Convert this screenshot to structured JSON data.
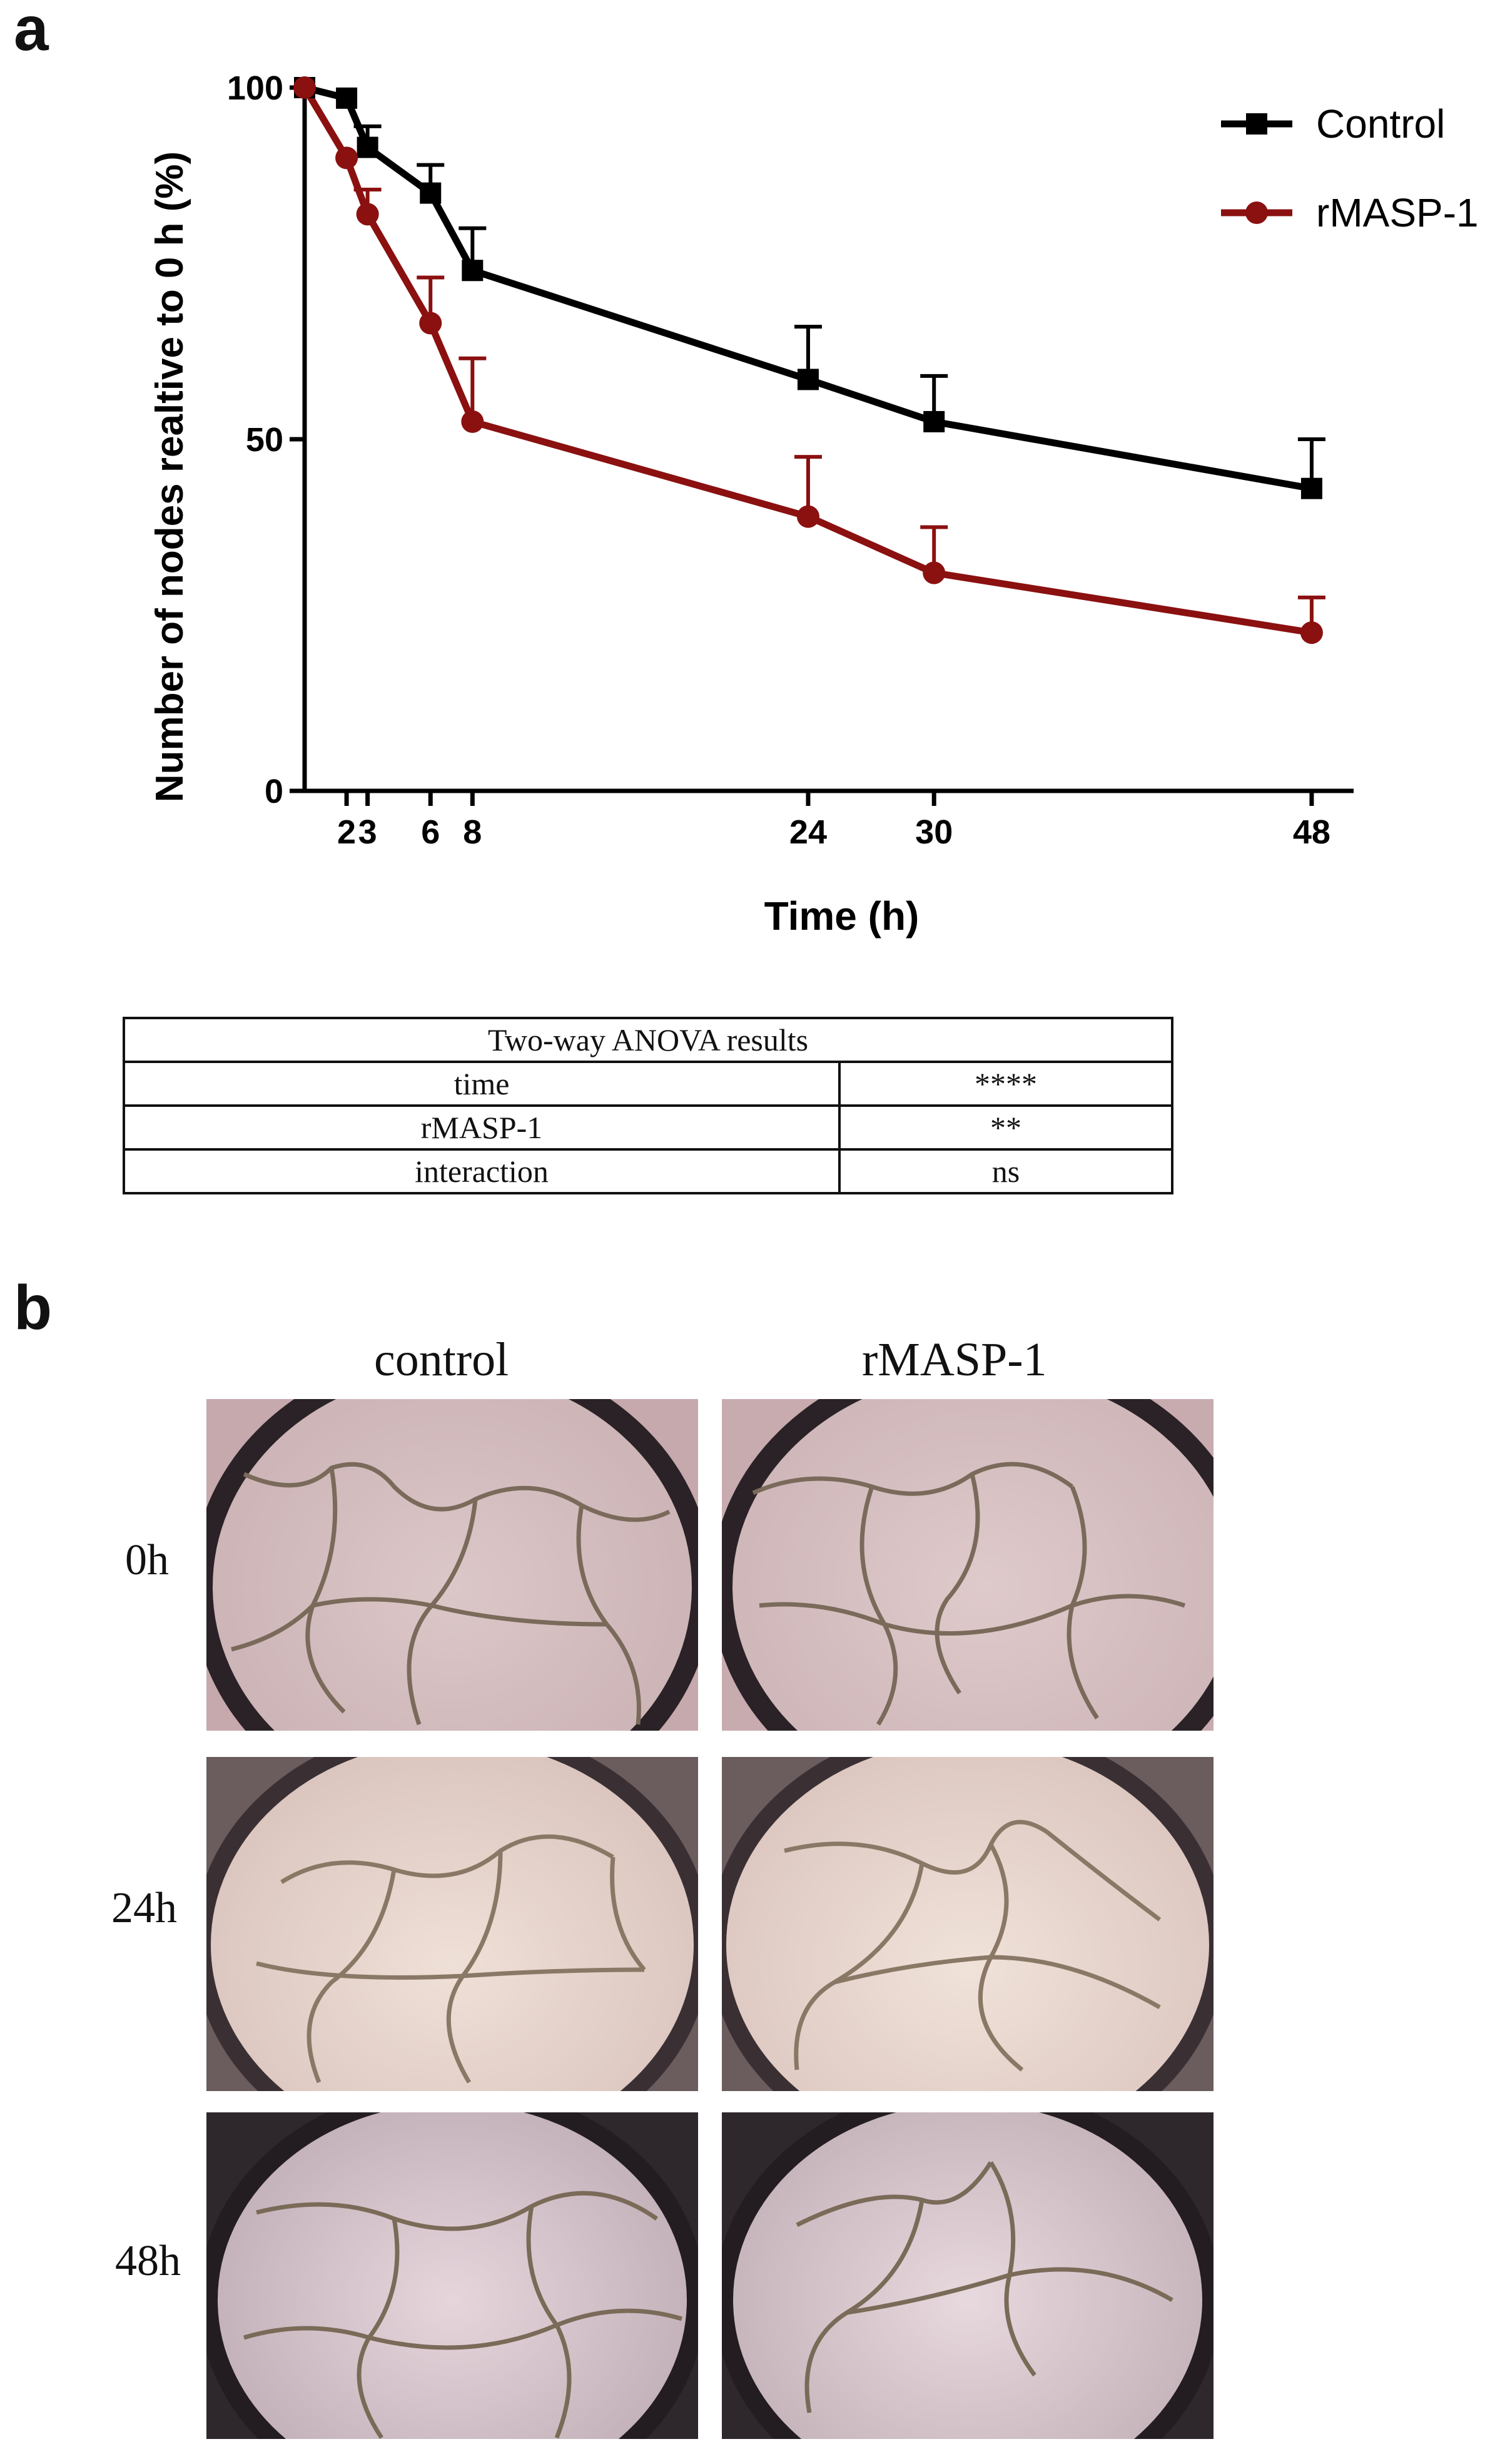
{
  "panel_a": {
    "label": "a"
  },
  "panel_b": {
    "label": "b"
  },
  "chart_data": {
    "type": "line",
    "xlabel": "Time (h)",
    "ylabel": "Number of nodes realtive to 0 h (%)",
    "x": [
      0,
      2,
      3,
      6,
      8,
      24,
      30,
      48
    ],
    "xticks": [
      2,
      3,
      6,
      8,
      24,
      30,
      48
    ],
    "yticks": [
      0,
      50,
      100
    ],
    "xlim": [
      0,
      50
    ],
    "ylim": [
      0,
      100
    ],
    "legend_position": "top-right",
    "series": [
      {
        "name": "Control",
        "color": "#000000",
        "marker": "square",
        "values": [
          100,
          98.5,
          91.5,
          85,
          74,
          58.5,
          52.5,
          43
        ],
        "errors": [
          0,
          0,
          3,
          4,
          6,
          7.5,
          6.5,
          7
        ]
      },
      {
        "name": "rMASP-1",
        "color": "#8b1010",
        "marker": "circle",
        "values": [
          100,
          90,
          82,
          66.5,
          52.5,
          39,
          31,
          22.5
        ],
        "errors": [
          0,
          0,
          3.5,
          6.5,
          9,
          8.5,
          6.5,
          5
        ]
      }
    ]
  },
  "anova": {
    "title": "Two-way ANOVA results",
    "rows": [
      {
        "factor": "time",
        "significance": "****"
      },
      {
        "factor": "rMASP-1",
        "significance": "**"
      },
      {
        "factor": "interaction",
        "significance": "ns"
      }
    ]
  },
  "micrographs": {
    "columns": [
      "control",
      "rMASP-1"
    ],
    "rows": [
      "0h",
      "24h",
      "48h"
    ]
  }
}
